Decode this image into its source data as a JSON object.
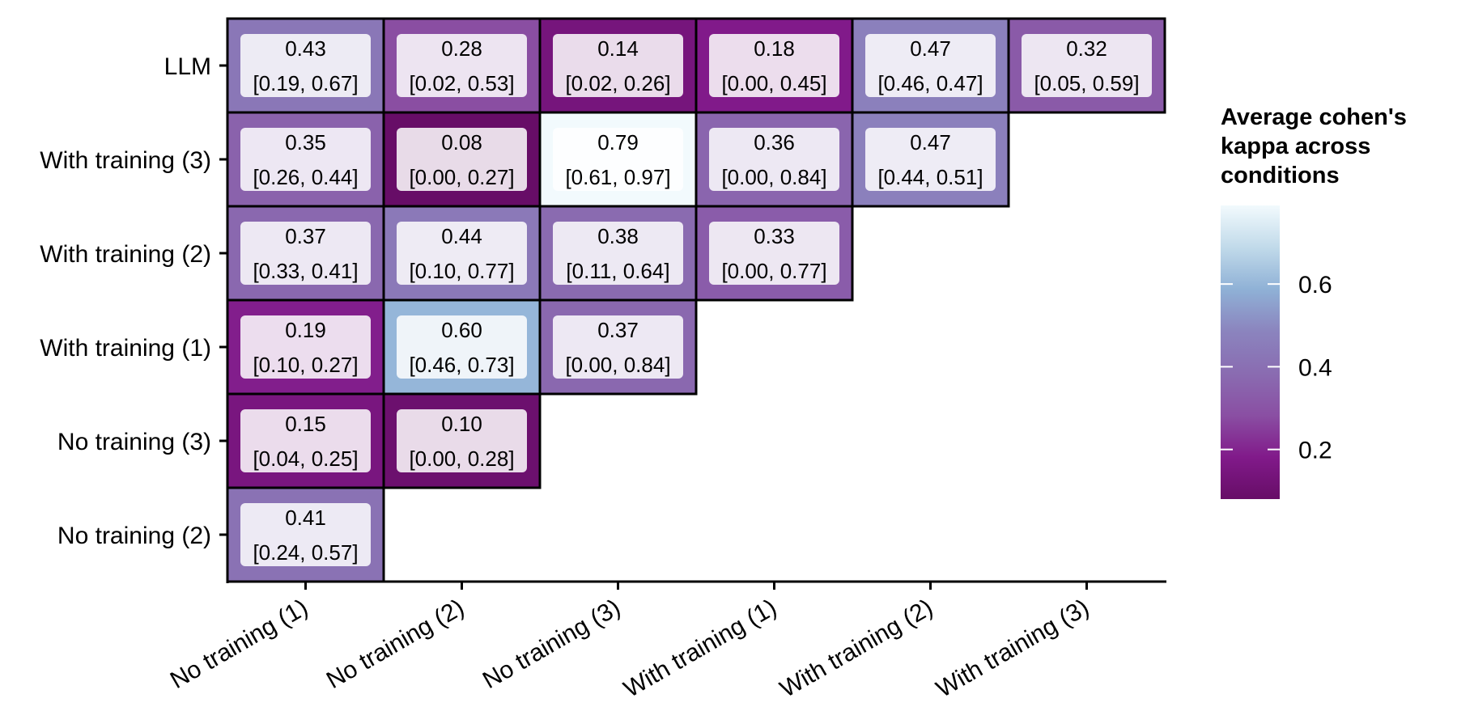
{
  "chart_data": {
    "type": "heatmap",
    "title": "",
    "xlabel": "",
    "ylabel": "",
    "x_categories": [
      "No training (1)",
      "No training (2)",
      "No training (3)",
      "With training (1)",
      "With training (2)",
      "With training (3)"
    ],
    "y_categories": [
      "No training (2)",
      "No training (3)",
      "With training (1)",
      "With training (2)",
      "With training (3)",
      "LLM"
    ],
    "cells": [
      {
        "x": "No training (1)",
        "y": "LLM",
        "value": 0.43,
        "ci": "[0.19, 0.67]"
      },
      {
        "x": "No training (2)",
        "y": "LLM",
        "value": 0.28,
        "ci": "[0.02, 0.53]"
      },
      {
        "x": "No training (3)",
        "y": "LLM",
        "value": 0.14,
        "ci": "[0.02, 0.26]"
      },
      {
        "x": "With training (1)",
        "y": "LLM",
        "value": 0.18,
        "ci": "[0.00, 0.45]"
      },
      {
        "x": "With training (2)",
        "y": "LLM",
        "value": 0.47,
        "ci": "[0.46, 0.47]"
      },
      {
        "x": "With training (3)",
        "y": "LLM",
        "value": 0.32,
        "ci": "[0.05, 0.59]"
      },
      {
        "x": "No training (1)",
        "y": "With training (3)",
        "value": 0.35,
        "ci": "[0.26, 0.44]"
      },
      {
        "x": "No training (2)",
        "y": "With training (3)",
        "value": 0.08,
        "ci": "[0.00, 0.27]"
      },
      {
        "x": "No training (3)",
        "y": "With training (3)",
        "value": 0.79,
        "ci": "[0.61, 0.97]"
      },
      {
        "x": "With training (1)",
        "y": "With training (3)",
        "value": 0.36,
        "ci": "[0.00, 0.84]"
      },
      {
        "x": "With training (2)",
        "y": "With training (3)",
        "value": 0.47,
        "ci": "[0.44, 0.51]"
      },
      {
        "x": "No training (1)",
        "y": "With training (2)",
        "value": 0.37,
        "ci": "[0.33, 0.41]"
      },
      {
        "x": "No training (2)",
        "y": "With training (2)",
        "value": 0.44,
        "ci": "[0.10, 0.77]"
      },
      {
        "x": "No training (3)",
        "y": "With training (2)",
        "value": 0.38,
        "ci": "[0.11, 0.64]"
      },
      {
        "x": "With training (1)",
        "y": "With training (2)",
        "value": 0.33,
        "ci": "[0.00, 0.77]"
      },
      {
        "x": "No training (1)",
        "y": "With training (1)",
        "value": 0.19,
        "ci": "[0.10, 0.27]"
      },
      {
        "x": "No training (2)",
        "y": "With training (1)",
        "value": 0.6,
        "ci": "[0.46, 0.73]"
      },
      {
        "x": "No training (3)",
        "y": "With training (1)",
        "value": 0.37,
        "ci": "[0.00, 0.84]"
      },
      {
        "x": "No training (1)",
        "y": "No training (3)",
        "value": 0.15,
        "ci": "[0.04, 0.25]"
      },
      {
        "x": "No training (2)",
        "y": "No training (3)",
        "value": 0.1,
        "ci": "[0.00, 0.28]"
      },
      {
        "x": "No training (1)",
        "y": "No training (2)",
        "value": 0.41,
        "ci": "[0.24, 0.57]"
      }
    ],
    "legend": {
      "title_lines": [
        "Average cohen's",
        "kappa across",
        "conditions"
      ],
      "range": [
        0.08,
        0.79
      ],
      "ticks": [
        0.2,
        0.4,
        0.6
      ],
      "tick_labels": [
        "0.2",
        "0.4",
        "0.6"
      ],
      "placement": "right"
    },
    "colors": {
      "scale": [
        "#670d67",
        "#811a8a",
        "#8a4fa3",
        "#8a6cb1",
        "#8b84be",
        "#8fb1d6",
        "#c1daea",
        "#f2fafd"
      ],
      "label_box": "#ffffff",
      "cell_border": "#000000",
      "axis": "#000000"
    },
    "grid": false
  }
}
